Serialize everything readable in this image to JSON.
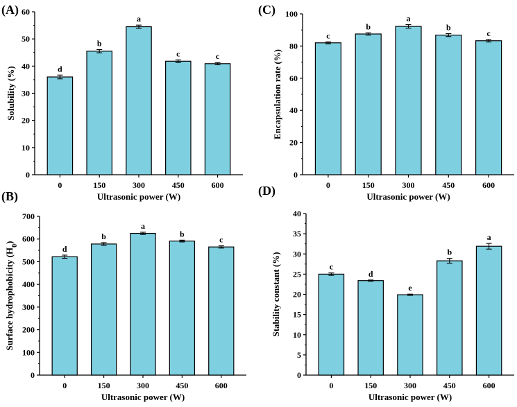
{
  "colors": {
    "bar": "#7ecfe0",
    "bar_stroke": "#000000",
    "axis": "#000000"
  },
  "chart_data": [
    {
      "id": "A",
      "panel_label": "(A)",
      "type": "bar",
      "xlabel": "Ultrasonic power (W)",
      "ylabel": "Solubility (%)",
      "ylim": [
        0,
        60
      ],
      "yticks": [
        0,
        10,
        20,
        30,
        40,
        50,
        60
      ],
      "categories": [
        "0",
        "150",
        "300",
        "450",
        "600"
      ],
      "values": [
        36.0,
        45.5,
        54.5,
        41.8,
        40.9
      ],
      "errors": [
        0.7,
        0.6,
        0.6,
        0.5,
        0.4
      ],
      "letters": [
        "d",
        "b",
        "a",
        "c",
        "c"
      ]
    },
    {
      "id": "C",
      "panel_label": "(C)",
      "type": "bar",
      "xlabel": "Ultrasonic power (W)",
      "ylabel": "Encapsulation rate (%)",
      "ylim": [
        0,
        100
      ],
      "yticks": [
        0,
        20,
        40,
        60,
        80,
        100
      ],
      "categories": [
        "0",
        "150",
        "300",
        "450",
        "600"
      ],
      "values": [
        82.0,
        87.5,
        92.2,
        86.8,
        83.3
      ],
      "errors": [
        0.6,
        0.7,
        1.1,
        0.9,
        0.8
      ],
      "letters": [
        "c",
        "b",
        "a",
        "b",
        "c"
      ]
    },
    {
      "id": "B",
      "panel_label": "(B)",
      "type": "bar",
      "xlabel": "Ultrasonic power (W)",
      "ylabel": "Surface hydrophobicity (H0)",
      "ylabel_parts": [
        "Surface hydrophobicity (H",
        "0",
        ")"
      ],
      "ylim": [
        0,
        700
      ],
      "yticks": [
        0,
        100,
        200,
        300,
        400,
        500,
        600,
        700
      ],
      "categories": [
        "0",
        "150",
        "300",
        "450",
        "600"
      ],
      "values": [
        522,
        578,
        625,
        591,
        565
      ],
      "errors": [
        7,
        6,
        5,
        4,
        5
      ],
      "letters": [
        "d",
        "b",
        "a",
        "b",
        "c"
      ]
    },
    {
      "id": "D",
      "panel_label": "(D)",
      "type": "bar",
      "xlabel": "Ultrasonic power (W)",
      "ylabel": "Stability constant (%)",
      "ylim": [
        0,
        40
      ],
      "yticks": [
        0,
        5,
        10,
        15,
        20,
        25,
        30,
        35,
        40
      ],
      "categories": [
        "0",
        "150",
        "300",
        "450",
        "600"
      ],
      "values": [
        25.0,
        23.4,
        19.9,
        28.3,
        31.9
      ],
      "errors": [
        0.3,
        0.15,
        0.15,
        0.6,
        0.7
      ],
      "letters": [
        "c",
        "d",
        "e",
        "b",
        "a"
      ]
    }
  ]
}
